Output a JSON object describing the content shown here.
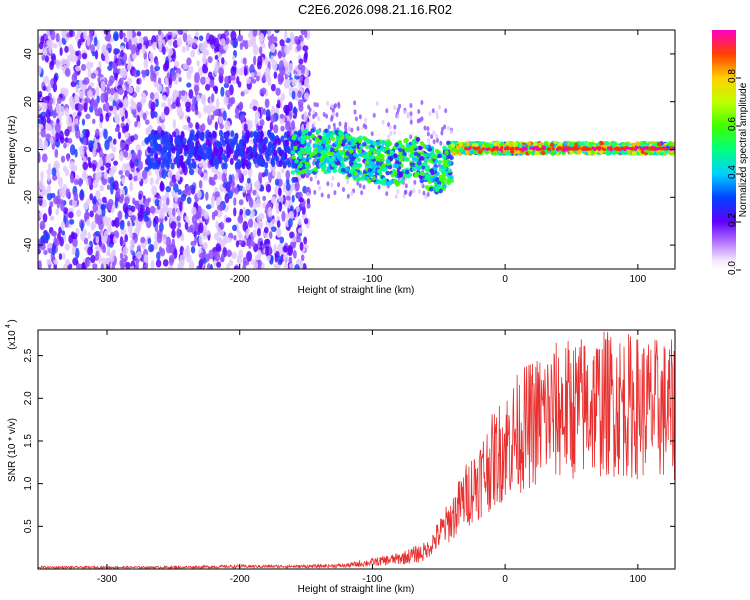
{
  "title": "C2E6.2026.098.21.16.R02",
  "chart_data": [
    {
      "type": "heatmap",
      "xlabel": "Height of straight line (km)",
      "ylabel": "Frequency (Hz)",
      "xlim": [
        -352,
        128
      ],
      "ylim": [
        -50,
        50
      ],
      "xticks": [
        -300,
        -200,
        -100,
        0,
        100
      ],
      "yticks": [
        -40,
        -20,
        0,
        20,
        40
      ],
      "colorbar": {
        "label": "Normalized spectral amplitude",
        "range": [
          0,
          1
        ],
        "ticks": [
          0.0,
          0.2,
          0.4,
          0.6,
          0.8
        ]
      },
      "description_regions": [
        {
          "x_range": [
            -352,
            -150
          ],
          "freq_range": [
            -50,
            50
          ],
          "amplitude": 0.2
        },
        {
          "x_range": [
            -160,
            -40
          ],
          "freq_range": [
            -12,
            8
          ],
          "amplitude": 0.45
        },
        {
          "x_range": [
            -40,
            128
          ],
          "freq_range": [
            -2,
            2
          ],
          "amplitude": 0.85
        }
      ]
    },
    {
      "type": "line",
      "xlabel": "Height of straight line (km)",
      "ylabel": "SNR (10 * v/v)",
      "scale_label": "(x10",
      "scale_exponent": "4",
      "xlim": [
        -352,
        128
      ],
      "ylim": [
        0,
        2.8
      ],
      "xticks": [
        -300,
        -200,
        -100,
        0,
        100
      ],
      "yticks": [
        0.5,
        1.0,
        1.5,
        2.0,
        2.5
      ],
      "series": [
        {
          "name": "SNR",
          "color": "#e83030",
          "envelope_x": [
            -352,
            -250,
            -200,
            -150,
            -120,
            -100,
            -80,
            -60,
            -50,
            -40,
            -30,
            -20,
            -10,
            0,
            10,
            20,
            30,
            40,
            60,
            80,
            100,
            128
          ],
          "envelope_y": [
            0.02,
            0.02,
            0.03,
            0.03,
            0.04,
            0.08,
            0.12,
            0.2,
            0.4,
            0.6,
            0.85,
            1.05,
            1.25,
            1.45,
            1.6,
            1.7,
            1.8,
            1.85,
            1.9,
            1.95,
            1.9,
            1.85
          ]
        }
      ]
    }
  ]
}
